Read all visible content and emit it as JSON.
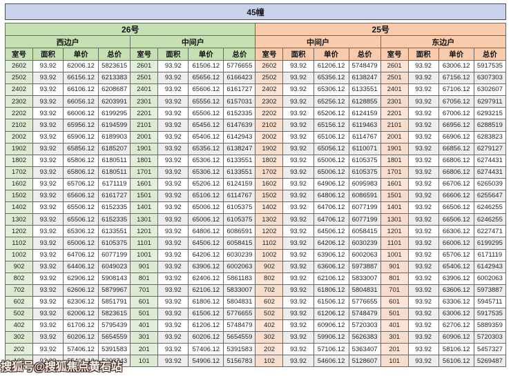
{
  "title": "45幢",
  "watermark": "搜狐号@搜狐焦点黄石站",
  "colors": {
    "title_bg": "#c8d3eb",
    "building_26_header": "#c6e0b4",
    "building_26_room_tint": "#e2efda",
    "building_25_header": "#f8cbad",
    "building_25_room_tint": "#fce4d6",
    "row_alternate": "#eeeeee"
  },
  "table": {
    "buildings": [
      {
        "label": "26号"
      },
      {
        "label": "25号"
      }
    ],
    "columns": [
      "室号",
      "面积",
      "单价",
      "总价"
    ],
    "unit_groups": [
      {
        "building": "26号",
        "label": "西边户",
        "theme": "green",
        "rows": [
          [
            "2602",
            "93.92",
            "62006.12",
            "5823615"
          ],
          [
            "2502",
            "93.92",
            "66156.12",
            "6213383"
          ],
          [
            "2402",
            "93.92",
            "66106.12",
            "6208687"
          ],
          [
            "2302",
            "93.92",
            "66056.12",
            "6203991"
          ],
          [
            "2202",
            "93.92",
            "66006.12",
            "6199295"
          ],
          [
            "2102",
            "93.92",
            "65956.12",
            "6194599"
          ],
          [
            "2002",
            "93.92",
            "65906.12",
            "6189903"
          ],
          [
            "1902",
            "93.92",
            "65856.12",
            "6185207"
          ],
          [
            "1802",
            "93.92",
            "65806.12",
            "6180511"
          ],
          [
            "1702",
            "93.92",
            "65806.12",
            "6180511"
          ],
          [
            "1602",
            "93.92",
            "65706.12",
            "6171119"
          ],
          [
            "1502",
            "93.92",
            "65606.12",
            "6161727"
          ],
          [
            "1402",
            "93.92",
            "65506.12",
            "6152335"
          ],
          [
            "1302",
            "93.92",
            "65506.12",
            "6152335"
          ],
          [
            "1202",
            "93.92",
            "65306.12",
            "6133551"
          ],
          [
            "1102",
            "93.92",
            "65006.12",
            "6105375"
          ],
          [
            "1002",
            "93.92",
            "64706.12",
            "6077199"
          ],
          [
            "902",
            "93.92",
            "64406.12",
            "6049023"
          ],
          [
            "802",
            "93.92",
            "62906.12",
            "5908143"
          ],
          [
            "702",
            "93.92",
            "62606.12",
            "5879967"
          ],
          [
            "602",
            "93.92",
            "62306.12",
            "5851791"
          ],
          [
            "502",
            "93.92",
            "62006.12",
            "5823615"
          ],
          [
            "402",
            "93.92",
            "61706.12",
            "5795439"
          ],
          [
            "302",
            "93.92",
            "60206.12",
            "5654559"
          ],
          [
            "202",
            "93.92",
            "57406.12",
            "5391583"
          ],
          [
            "102",
            "93.92",
            "55406.12",
            "5203743"
          ]
        ]
      },
      {
        "building": "26号",
        "label": "中间户",
        "theme": "green",
        "rows": [
          [
            "2601",
            "93.92",
            "61506.12",
            "5776655"
          ],
          [
            "2501",
            "93.92",
            "65656.12",
            "6166423"
          ],
          [
            "2401",
            "93.92",
            "65606.12",
            "6161727"
          ],
          [
            "2301",
            "93.92",
            "65556.12",
            "6157031"
          ],
          [
            "2201",
            "93.92",
            "65506.12",
            "6152335"
          ],
          [
            "2101",
            "93.92",
            "65456.12",
            "6147639"
          ],
          [
            "2001",
            "93.92",
            "65406.12",
            "6142943"
          ],
          [
            "1901",
            "93.92",
            "65356.12",
            "6138247"
          ],
          [
            "1801",
            "93.92",
            "65306.12",
            "6133551"
          ],
          [
            "1701",
            "93.92",
            "65306.12",
            "6133551"
          ],
          [
            "1601",
            "93.92",
            "65206.12",
            "6124159"
          ],
          [
            "1501",
            "93.92",
            "65106.12",
            "6114767"
          ],
          [
            "1401",
            "93.92",
            "65006.12",
            "6105375"
          ],
          [
            "1301",
            "93.92",
            "65006.12",
            "6105375"
          ],
          [
            "1201",
            "93.92",
            "64806.12",
            "6086591"
          ],
          [
            "1101",
            "93.92",
            "64506.12",
            "6058415"
          ],
          [
            "1001",
            "93.92",
            "64206.12",
            "6030239"
          ],
          [
            "901",
            "93.92",
            "63906.12",
            "6002063"
          ],
          [
            "801",
            "93.92",
            "62406.12",
            "5861183"
          ],
          [
            "701",
            "93.92",
            "62106.12",
            "5833007"
          ],
          [
            "601",
            "93.92",
            "61806.12",
            "5804831"
          ],
          [
            "501",
            "93.92",
            "61506.12",
            "5776655"
          ],
          [
            "401",
            "93.92",
            "61206.12",
            "5748479"
          ],
          [
            "301",
            "93.92",
            "60206.12",
            "5654559"
          ],
          [
            "201",
            "93.92",
            "57406.12",
            "5391583"
          ],
          [
            "101",
            "93.92",
            "54906.12",
            "5156783"
          ]
        ]
      },
      {
        "building": "25号",
        "label": "中间户",
        "theme": "peach",
        "rows": [
          [
            "2602",
            "93.92",
            "61206.12",
            "5748479"
          ],
          [
            "2502",
            "93.92",
            "65356.12",
            "6138247"
          ],
          [
            "2402",
            "93.92",
            "65306.12",
            "6133551"
          ],
          [
            "2302",
            "93.92",
            "65256.12",
            "6128855"
          ],
          [
            "2202",
            "93.92",
            "65206.12",
            "6124159"
          ],
          [
            "2102",
            "93.92",
            "65156.12",
            "6119463"
          ],
          [
            "2002",
            "93.92",
            "65106.12",
            "6114767"
          ],
          [
            "1902",
            "93.92",
            "65056.12",
            "6110071"
          ],
          [
            "1802",
            "93.92",
            "65006.12",
            "6105375"
          ],
          [
            "1702",
            "93.92",
            "65006.12",
            "6105375"
          ],
          [
            "1602",
            "93.92",
            "64906.12",
            "6095983"
          ],
          [
            "1502",
            "93.92",
            "64806.12",
            "6086591"
          ],
          [
            "1402",
            "93.92",
            "64706.12",
            "6077199"
          ],
          [
            "1302",
            "93.92",
            "64706.12",
            "6077199"
          ],
          [
            "1202",
            "93.92",
            "64506.12",
            "6058415"
          ],
          [
            "1102",
            "93.92",
            "64206.12",
            "6030239"
          ],
          [
            "1002",
            "93.92",
            "63906.12",
            "6002063"
          ],
          [
            "902",
            "93.92",
            "63606.12",
            "5973887"
          ],
          [
            "802",
            "93.92",
            "62106.12",
            "5833007"
          ],
          [
            "702",
            "93.92",
            "61806.12",
            "5804831"
          ],
          [
            "602",
            "93.92",
            "61506.12",
            "5776655"
          ],
          [
            "502",
            "93.92",
            "61206.12",
            "5748479"
          ],
          [
            "402",
            "93.92",
            "60906.12",
            "5720303"
          ],
          [
            "302",
            "93.92",
            "59906.12",
            "5626383"
          ],
          [
            "202",
            "93.92",
            "57106.12",
            "5363407"
          ],
          [
            "102",
            "93.92",
            "54606.12",
            "5128607"
          ]
        ]
      },
      {
        "building": "25号",
        "label": "东边户",
        "theme": "peach",
        "rows": [
          [
            "2601",
            "93.92",
            "63006.12",
            "5917535"
          ],
          [
            "2501",
            "93.92",
            "67156.12",
            "6307303"
          ],
          [
            "2401",
            "93.92",
            "67106.12",
            "6302607"
          ],
          [
            "2301",
            "93.92",
            "67056.12",
            "6297911"
          ],
          [
            "2201",
            "93.92",
            "67006.12",
            "6293215"
          ],
          [
            "2101",
            "93.92",
            "66956.12",
            "6288519"
          ],
          [
            "2001",
            "93.92",
            "66906.12",
            "6283823"
          ],
          [
            "1901",
            "93.92",
            "66856.12",
            "6279127"
          ],
          [
            "1801",
            "93.92",
            "66806.12",
            "6274431"
          ],
          [
            "1701",
            "93.92",
            "66806.12",
            "6274431"
          ],
          [
            "1601",
            "93.92",
            "66706.12",
            "6265039"
          ],
          [
            "1501",
            "93.92",
            "66606.12",
            "6255647"
          ],
          [
            "1401",
            "93.92",
            "66506.12",
            "6246255"
          ],
          [
            "1301",
            "93.92",
            "66506.12",
            "6246255"
          ],
          [
            "1201",
            "93.92",
            "66306.12",
            "6227471"
          ],
          [
            "1101",
            "93.92",
            "66006.12",
            "6199295"
          ],
          [
            "1001",
            "93.92",
            "65706.12",
            "6171119"
          ],
          [
            "901",
            "93.92",
            "65406.12",
            "6142943"
          ],
          [
            "801",
            "93.92",
            "63906.12",
            "6002063"
          ],
          [
            "701",
            "93.92",
            "63606.12",
            "5973887"
          ],
          [
            "601",
            "93.92",
            "63306.12",
            "5945711"
          ],
          [
            "501",
            "93.92",
            "63006.12",
            "5917535"
          ],
          [
            "401",
            "93.92",
            "62706.12",
            "5889359"
          ],
          [
            "301",
            "93.92",
            "60906.12",
            "5720303"
          ],
          [
            "201",
            "93.92",
            "58106.12",
            "5457327"
          ],
          [
            "101",
            "93.92",
            "56106.12",
            "5269487"
          ]
        ]
      }
    ]
  }
}
